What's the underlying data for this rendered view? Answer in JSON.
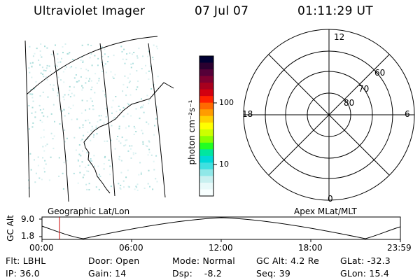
{
  "header": {
    "instrument": "Ultraviolet Imager",
    "date": "07 Jul 07",
    "time": "01:11:29 UT"
  },
  "colorbar": {
    "unit_label": "photon cm⁻²s⁻¹",
    "ticks": [
      "100",
      "10"
    ],
    "colors": [
      "#000033",
      "#2b0030",
      "#550038",
      "#7f0030",
      "#a8001e",
      "#d20010",
      "#ff2200",
      "#ff6a00",
      "#ff9c00",
      "#ffd000",
      "#ffff00",
      "#ccff00",
      "#88ff00",
      "#22ff22",
      "#00e6a0",
      "#00d8d8",
      "#40e0e0",
      "#90e8e8",
      "#c8f0f0",
      "#e8fafa",
      "#f8ffff"
    ]
  },
  "polar_plot": {
    "mlt_labels": {
      "top": "12",
      "left": "18",
      "right": "6",
      "bottom": "0"
    },
    "lat_labels": [
      "60",
      "70",
      "80"
    ]
  },
  "timeline": {
    "left_label": "Geographic Lat/Lon",
    "right_label": "Apex  MLat/MLT",
    "y_axis_title": "GC Alt",
    "y_ticks": [
      "9.0",
      "1.8"
    ],
    "x_ticks": [
      "00:00",
      "06:00",
      "12:00",
      "18:00",
      "23:59"
    ]
  },
  "info": {
    "flt": "Flt: LBHL",
    "ip": "IP: 36.0",
    "door": "Door: Open",
    "gain": "Gain: 14",
    "mode": "Mode: Normal",
    "dsp": "Dsp:    -8.2",
    "gc_alt": "GC Alt: 4.2 Re",
    "seq": "Seq: 39",
    "glat": "GLat: -32.3",
    "glon": "GLon: 15.4"
  }
}
